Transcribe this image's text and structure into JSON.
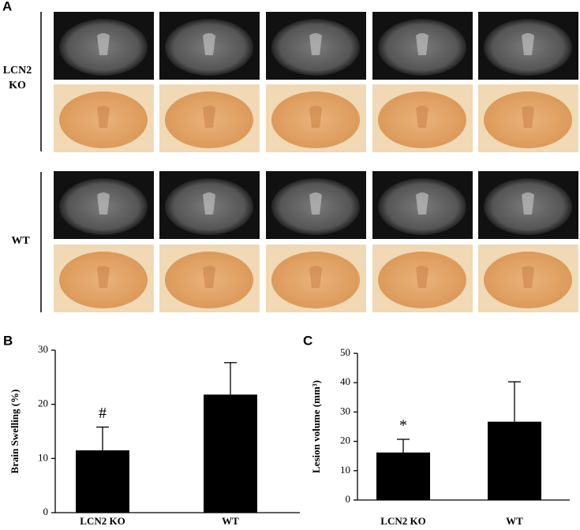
{
  "panel_labels": [
    "A",
    "B",
    "C"
  ],
  "row_labels": [
    "LCN2 KO",
    "WT"
  ],
  "chart_data": [
    {
      "type": "bar",
      "ylabel": "Brain Swelling (%)",
      "categories": [
        "LCN2 KO",
        "WT"
      ],
      "values": [
        11.5,
        21.8
      ],
      "errors": [
        4.3,
        5.9
      ],
      "color": "#000000",
      "ylim": [
        0,
        30
      ],
      "yticks": [
        0,
        10,
        20,
        30
      ],
      "annotations": [
        "#"
      ]
    },
    {
      "type": "bar",
      "ylabel": "Lesion volume (mm³)",
      "categories": [
        "LCN2 KO",
        "WT"
      ],
      "values": [
        16.2,
        26.7
      ],
      "errors": [
        4.5,
        13.6
      ],
      "color": "#000000",
      "ylim": [
        0,
        50
      ],
      "yticks": [
        0,
        10,
        20,
        30,
        40,
        50
      ],
      "annotations": [
        "*"
      ]
    }
  ]
}
